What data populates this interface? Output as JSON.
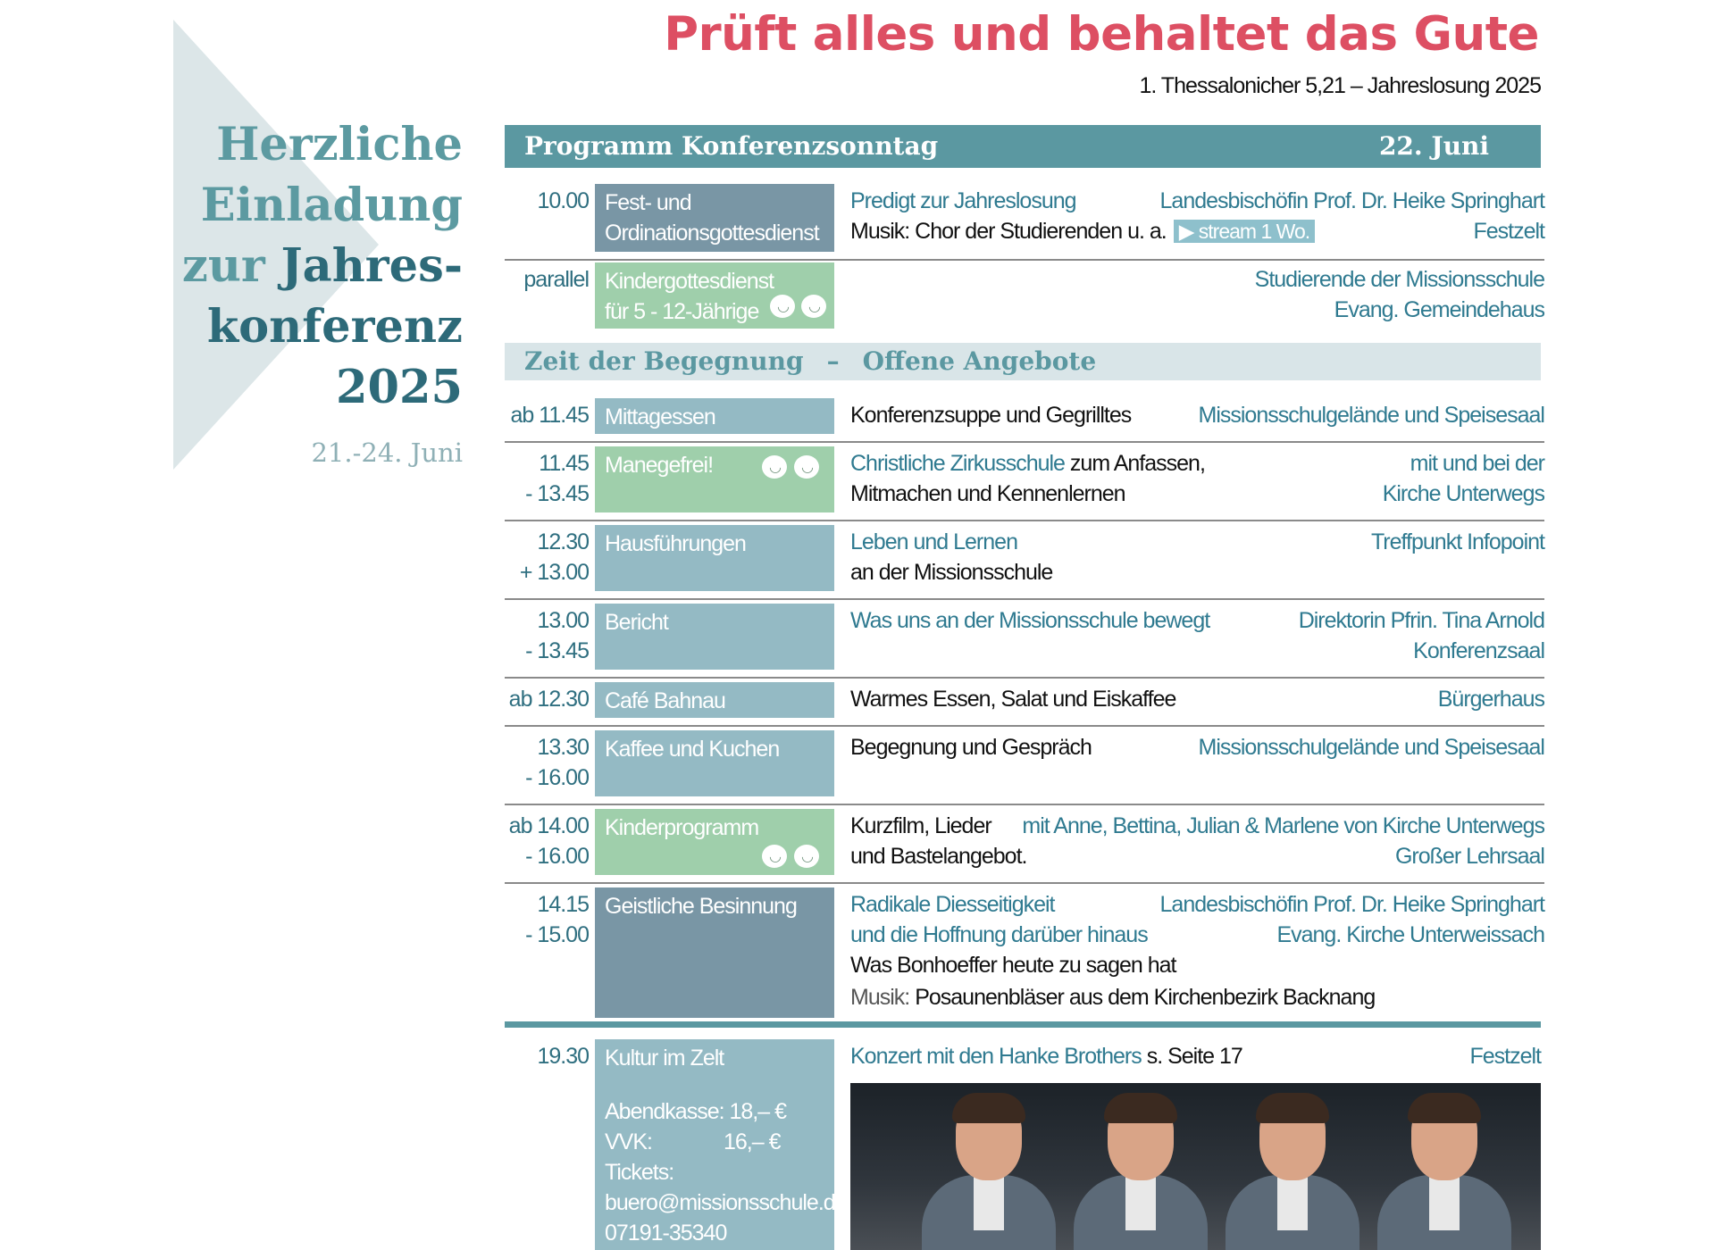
{
  "invitation": {
    "line1": "Herzliche",
    "line2": "Einladung",
    "line3_a": "zur ",
    "line3_b": "Jahres-",
    "line4": "konferenz",
    "line5": "2025",
    "dates": "21.-24. Juni"
  },
  "header": {
    "motto": "Prüft alles und behaltet das Gute",
    "reference": "1. Thessalonicher 5,21  –  Jahreslosung 2025"
  },
  "program_bar": {
    "title": "Programm Konferenzsonntag",
    "date": "22. Juni"
  },
  "encounter_bar": {
    "left": "Zeit der Begegnung",
    "dash": "–",
    "right": "Offene Angebote"
  },
  "rows": [
    {
      "time1": "10.00",
      "time2": "",
      "box": "Fest- und Ordinationsgottesdienst",
      "desc1": "Predigt zur Jahreslosung",
      "desc2": "Musik: Chor der Studierenden u. a.",
      "stream": "stream 1 Wo.",
      "right1": "Landesbischöfin Prof. Dr. Heike Springhart",
      "right2": "Festzelt"
    },
    {
      "time1": "parallel",
      "box": "Kindergottesdienst für 5 - 12-Jährige",
      "right1": "Studierende der Missionsschule",
      "right2": "Evang. Gemeindehaus"
    },
    {
      "time1": "ab 11.45",
      "box": "Mittagessen",
      "desc1": "Konferenzsuppe und Gegrilltes",
      "right1": "Missionsschulgelände und Speisesaal"
    },
    {
      "time1": "11.45",
      "time2": "- 13.45",
      "box": "Manegefrei!",
      "desc1a": "Christliche  Zirkusschule",
      "desc1b": " zum Anfassen,",
      "desc2": "Mitmachen und Kennenlernen",
      "right1": "mit und bei der",
      "right2": "Kirche Unterwegs"
    },
    {
      "time1": "12.30",
      "time2": "+ 13.00",
      "box": "Hausführungen",
      "desc1": "Leben und Lernen",
      "desc2": "an der Missionsschule",
      "right1": "Treffpunkt Infopoint"
    },
    {
      "time1": "13.00",
      "time2": "- 13.45",
      "box": "Bericht",
      "desc1": "Was uns an der Missionsschule  bewegt",
      "right1": "Direktorin Pfrin. Tina Arnold",
      "right2": "Konferenzsaal"
    },
    {
      "time1": "ab 12.30",
      "box": "Café Bahnau",
      "desc1": "Warmes Essen, Salat und Eiskaffee",
      "right1": "Bürgerhaus"
    },
    {
      "time1": "13.30",
      "time2": "- 16.00",
      "box": "Kaffee und Kuchen",
      "desc1": "Begegnung und Gespräch",
      "right1": "Missionsschulgelände und Speisesaal"
    },
    {
      "time1": "ab 14.00",
      "time2": "- 16.00",
      "box": "Kinderprogramm",
      "desc1": "Kurzfilm, Lieder",
      "desc2": "und Bastelangebot.",
      "right1": "mit  Anne, Bettina, Julian & Marlene von Kirche Unterwegs",
      "right2": "Großer Lehrsaal"
    },
    {
      "time1": "14.15",
      "time2": "- 15.00",
      "box": "Geistliche Besinnung",
      "desc1": "Radikale Diesseitigkeit",
      "desc2": "und die Hoffnung darüber hinaus",
      "desc3": "Was Bonhoeffer heute zu sagen hat",
      "music_label": "Musik:",
      "music": "Posaunenbläser aus dem Kirchenbezirk Backnang",
      "right1": "Landesbischöfin Prof. Dr. Heike Springhart",
      "right2": "Evang. Kirche Unterweissach"
    },
    {
      "time1": "19.30",
      "box_title": "Kultur im Zelt",
      "box_l1": "Abendkasse: 18,– €",
      "box_l2a": "VVK:",
      "box_l2b": "16,– €",
      "box_l3": "Tickets:",
      "box_l4": "buero@missionsschule.de",
      "box_l5": "07191-35340",
      "desc1": "Konzert mit  den Hanke Brothers",
      "desc1b": "s. Seite 17",
      "right1": "Festzelt"
    }
  ]
}
